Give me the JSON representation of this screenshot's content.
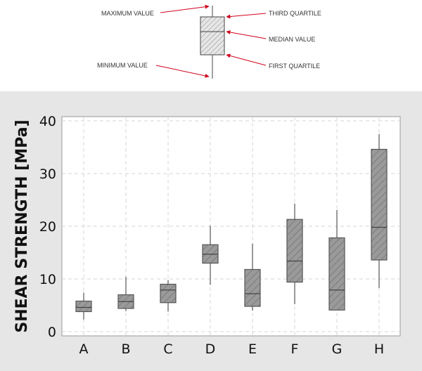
{
  "legend": {
    "maximum": "MAXIMUM VALUE",
    "minimum": "MINIMUM VALUE",
    "third_quartile": "THIRD QUARTILE",
    "median": "MEDIAN VALUE",
    "first_quartile": "FIRST QUARTILE",
    "arrow_color": "#d0021b",
    "box_fill": "#e0e0e0"
  },
  "chart_data": {
    "type": "boxplot",
    "ylabel": "SHEAR STRENGTH [MPa]",
    "ylim": [
      0,
      40
    ],
    "yticks": [
      0,
      10,
      20,
      30,
      40
    ],
    "grid": true,
    "categories": [
      "A",
      "B",
      "C",
      "D",
      "E",
      "F",
      "G",
      "H"
    ],
    "boxes": [
      {
        "min": 2.3,
        "q1": 3.8,
        "median": 4.6,
        "q3": 5.8,
        "max": 7.4
      },
      {
        "min": 3.9,
        "q1": 4.4,
        "median": 5.7,
        "q3": 7.0,
        "max": 10.4
      },
      {
        "min": 3.8,
        "q1": 5.5,
        "median": 7.9,
        "q3": 9.0,
        "max": 9.8
      },
      {
        "min": 8.9,
        "q1": 13.0,
        "median": 14.7,
        "q3": 16.5,
        "max": 20.1
      },
      {
        "min": 4.0,
        "q1": 4.8,
        "median": 7.2,
        "q3": 11.8,
        "max": 16.7
      },
      {
        "min": 5.2,
        "q1": 9.4,
        "median": 13.4,
        "q3": 21.3,
        "max": 24.3
      },
      {
        "min": 4.1,
        "q1": 4.1,
        "median": 7.9,
        "q3": 17.8,
        "max": 23.1
      },
      {
        "min": 8.3,
        "q1": 13.6,
        "median": 19.8,
        "q3": 34.6,
        "max": 37.5
      }
    ],
    "box_fill": "#9a9a9a",
    "panel_background": "#e6e6e6",
    "plot_background": "#ffffff"
  }
}
